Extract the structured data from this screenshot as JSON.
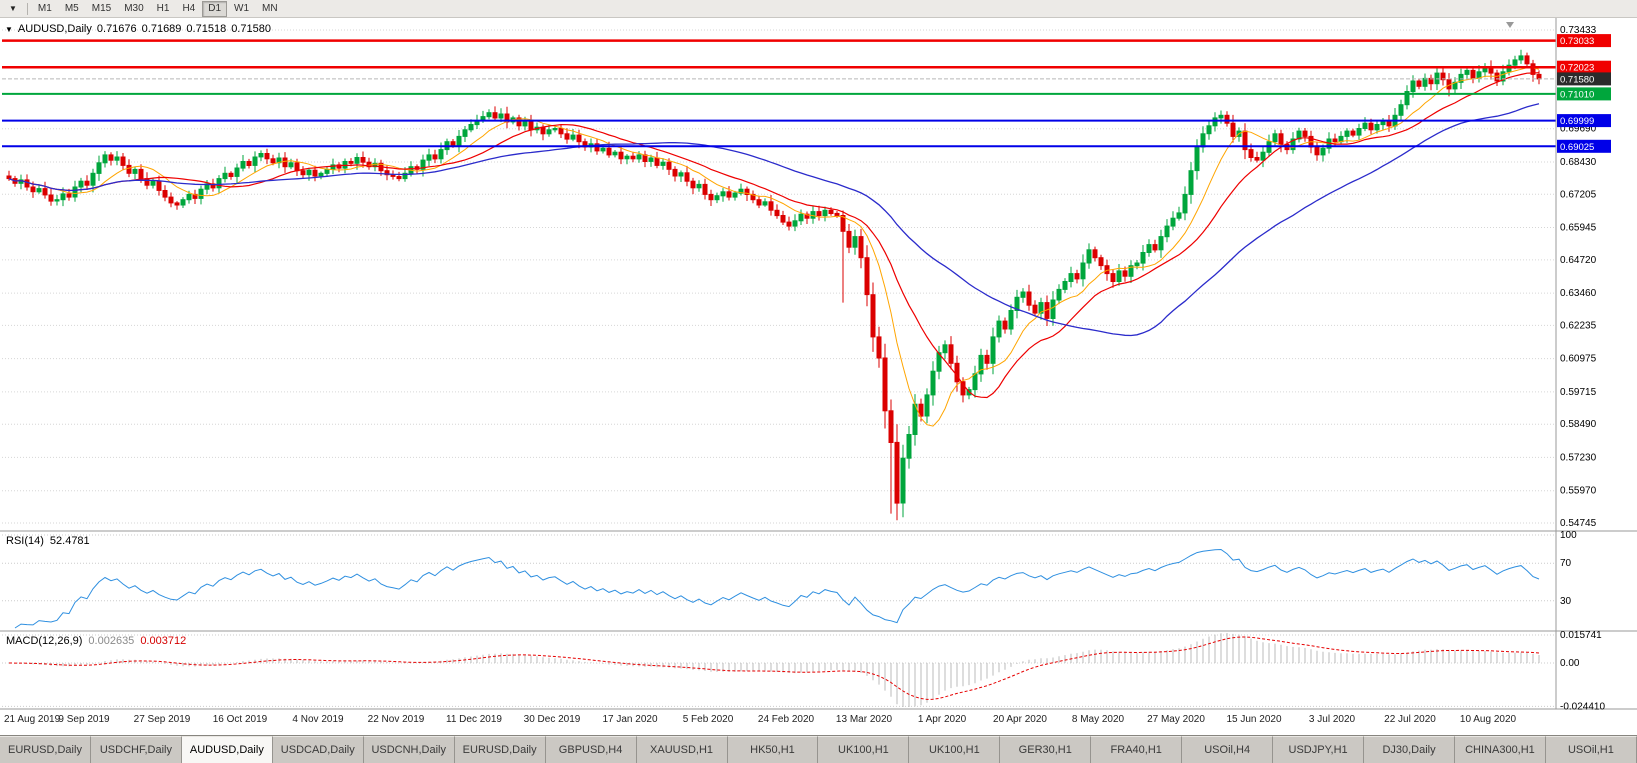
{
  "toolbar": {
    "dropdown_glyph": "▼",
    "timeframes": [
      "M1",
      "M5",
      "M15",
      "M30",
      "H1",
      "H4",
      "D1",
      "W1",
      "MN"
    ],
    "active": "D1"
  },
  "chart": {
    "dropdown_glyph": "▼",
    "symbol_label": "AUDUSD,Daily",
    "ohlc": {
      "open": "0.71676",
      "high": "0.71689",
      "low": "0.71518",
      "close": "0.71580"
    }
  },
  "rsi": {
    "label": "RSI(14)",
    "value": "52.4781",
    "levels": [
      100,
      70,
      30
    ],
    "color": "#2E8FE0"
  },
  "macd": {
    "label": "MACD(12,26,9)",
    "value_main": "0.002635",
    "value_signal": "0.003712",
    "scale_top": "0.015741",
    "scale_zero": "0.00",
    "scale_bottom": "-0.024410",
    "scale_top_value": 0.015741,
    "scale_bottom_value": -0.02441
  },
  "tabs": {
    "active_index": 2,
    "items": [
      "EURUSD,Daily",
      "USDCHF,Daily",
      "AUDUSD,Daily",
      "USDCAD,Daily",
      "USDCNH,Daily",
      "EURUSD,Daily",
      "GBPUSD,H4",
      "XAUUSD,H1",
      "HK50,H1",
      "UK100,H1",
      "UK100,H1",
      "GER30,H1",
      "FRA40,H1",
      "USOil,H4",
      "USDJPY,H1",
      "DJ30,Daily",
      "CHINA300,H1",
      "USOil,H1"
    ]
  },
  "chart_data": {
    "type": "candlestick",
    "symbol": "AUDUSD",
    "timeframe": "Daily",
    "up_color": "#00A63C",
    "down_color": "#DB0000",
    "bars_per_label": 13,
    "x_labels": [
      "21 Aug 2019",
      "9 Sep 2019",
      "27 Sep 2019",
      "16 Oct 2019",
      "4 Nov 2019",
      "22 Nov 2019",
      "11 Dec 2019",
      "30 Dec 2019",
      "17 Jan 2020",
      "5 Feb 2020",
      "24 Feb 2020",
      "13 Mar 2020",
      "1 Apr 2020",
      "20 Apr 2020",
      "8 May 2020",
      "27 May 2020",
      "15 Jun 2020",
      "3 Jul 2020",
      "22 Jul 2020",
      "10 Aug 2020"
    ],
    "closes": [
      0.678,
      0.6762,
      0.6775,
      0.6748,
      0.673,
      0.6742,
      0.6718,
      0.6695,
      0.67,
      0.6722,
      0.671,
      0.6748,
      0.677,
      0.6755,
      0.68,
      0.684,
      0.687,
      0.685,
      0.6862,
      0.683,
      0.68,
      0.6815,
      0.678,
      0.6755,
      0.677,
      0.6735,
      0.671,
      0.6688,
      0.668,
      0.67,
      0.672,
      0.6705,
      0.674,
      0.676,
      0.6745,
      0.678,
      0.68,
      0.6788,
      0.682,
      0.6845,
      0.683,
      0.6862,
      0.6875,
      0.6855,
      0.684,
      0.6858,
      0.6825,
      0.684,
      0.681,
      0.6795,
      0.6812,
      0.679,
      0.68,
      0.6815,
      0.6832,
      0.682,
      0.6845,
      0.6838,
      0.686,
      0.6842,
      0.6825,
      0.6838,
      0.681,
      0.6795,
      0.6788,
      0.678,
      0.68,
      0.6825,
      0.6815,
      0.685,
      0.687,
      0.6855,
      0.689,
      0.692,
      0.6905,
      0.694,
      0.6965,
      0.6985,
      0.7,
      0.7015,
      0.703,
      0.701,
      0.7025,
      0.6995,
      0.701,
      0.698,
      0.6995,
      0.6965,
      0.6975,
      0.695,
      0.6965,
      0.697,
      0.695,
      0.693,
      0.6945,
      0.692,
      0.69,
      0.6912,
      0.6885,
      0.6895,
      0.687,
      0.688,
      0.6855,
      0.6865,
      0.6855,
      0.687,
      0.6845,
      0.6858,
      0.683,
      0.6842,
      0.6815,
      0.679,
      0.6802,
      0.677,
      0.6745,
      0.6758,
      0.672,
      0.67,
      0.6715,
      0.673,
      0.671,
      0.6725,
      0.674,
      0.672,
      0.67,
      0.668,
      0.6692,
      0.666,
      0.664,
      0.6615,
      0.66,
      0.662,
      0.6645,
      0.663,
      0.6655,
      0.664,
      0.666,
      0.6648,
      0.664,
      0.658,
      0.652,
      0.656,
      0.648,
      0.634,
      0.618,
      0.61,
      0.59,
      0.578,
      0.555,
      0.572,
      0.581,
      0.5925,
      0.588,
      0.596,
      0.605,
      0.612,
      0.615,
      0.608,
      0.601,
      0.596,
      0.598,
      0.604,
      0.611,
      0.608,
      0.618,
      0.624,
      0.621,
      0.628,
      0.633,
      0.635,
      0.63,
      0.627,
      0.631,
      0.625,
      0.632,
      0.636,
      0.639,
      0.642,
      0.64,
      0.646,
      0.651,
      0.648,
      0.645,
      0.642,
      0.639,
      0.643,
      0.641,
      0.645,
      0.646,
      0.65,
      0.653,
      0.651,
      0.656,
      0.66,
      0.663,
      0.665,
      0.672,
      0.681,
      0.69,
      0.695,
      0.698,
      0.701,
      0.702,
      0.699,
      0.694,
      0.696,
      0.689,
      0.686,
      0.685,
      0.688,
      0.692,
      0.695,
      0.691,
      0.689,
      0.693,
      0.696,
      0.694,
      0.69,
      0.687,
      0.6895,
      0.693,
      0.692,
      0.694,
      0.696,
      0.6945,
      0.697,
      0.699,
      0.6965,
      0.6985,
      0.7,
      0.698,
      0.702,
      0.706,
      0.711,
      0.715,
      0.713,
      0.716,
      0.714,
      0.718,
      0.7155,
      0.712,
      0.7145,
      0.7175,
      0.719,
      0.716,
      0.7185,
      0.7205,
      0.718,
      0.715,
      0.7185,
      0.721,
      0.723,
      0.7245,
      0.7215,
      0.7175,
      0.7158
    ],
    "wick_overrides": [
      {
        "index": 139,
        "low": 0.631
      },
      {
        "index": 147,
        "low": 0.551
      }
    ],
    "y_axis": {
      "max": 0.73433,
      "min": 0.54745,
      "ticks": [
        {
          "price": 0.73433,
          "label": "0.73433"
        },
        {
          "price": 0.6969,
          "label": "0.69690"
        },
        {
          "price": 0.6843,
          "label": "0.68430"
        },
        {
          "price": 0.67205,
          "label": "0.67205"
        },
        {
          "price": 0.65945,
          "label": "0.65945"
        },
        {
          "price": 0.6472,
          "label": "0.64720"
        },
        {
          "price": 0.6346,
          "label": "0.63460"
        },
        {
          "price": 0.62235,
          "label": "0.62235"
        },
        {
          "price": 0.60975,
          "label": "0.60975"
        },
        {
          "price": 0.59715,
          "label": "0.59715"
        },
        {
          "price": 0.5849,
          "label": "0.58490"
        },
        {
          "price": 0.5723,
          "label": "0.57230"
        },
        {
          "price": 0.5597,
          "label": "0.55970"
        },
        {
          "price": 0.54745,
          "label": "0.54745"
        }
      ]
    },
    "overlays": [
      {
        "name": "ma-fast-line",
        "period": 9,
        "color": "#FFA500",
        "width": 1
      },
      {
        "name": "ma-mid-line",
        "period": 18,
        "color": "#EE0000",
        "width": 1.2
      },
      {
        "name": "ma-slow-line",
        "period": 45,
        "color": "#2B2BCB",
        "width": 1.3
      }
    ],
    "horizontal_lines": [
      {
        "price": 0.73033,
        "label": "0.73033",
        "color": "#F00000",
        "width": 2.5
      },
      {
        "price": 0.72023,
        "label": "0.72023",
        "color": "#F00000",
        "width": 2.5
      },
      {
        "price": 0.7101,
        "label": "0.71010",
        "color": "#00A63C",
        "width": 2
      },
      {
        "price": 0.69999,
        "label": "0.69999",
        "color": "#0000E8",
        "width": 2
      },
      {
        "price": 0.69025,
        "label": "0.69025",
        "color": "#0000E8",
        "width": 2
      }
    ],
    "current_price": {
      "price": 0.7158,
      "label": "0.71580",
      "badge_color": "#2B2B2B",
      "line_color": "#B8B8B8"
    }
  }
}
